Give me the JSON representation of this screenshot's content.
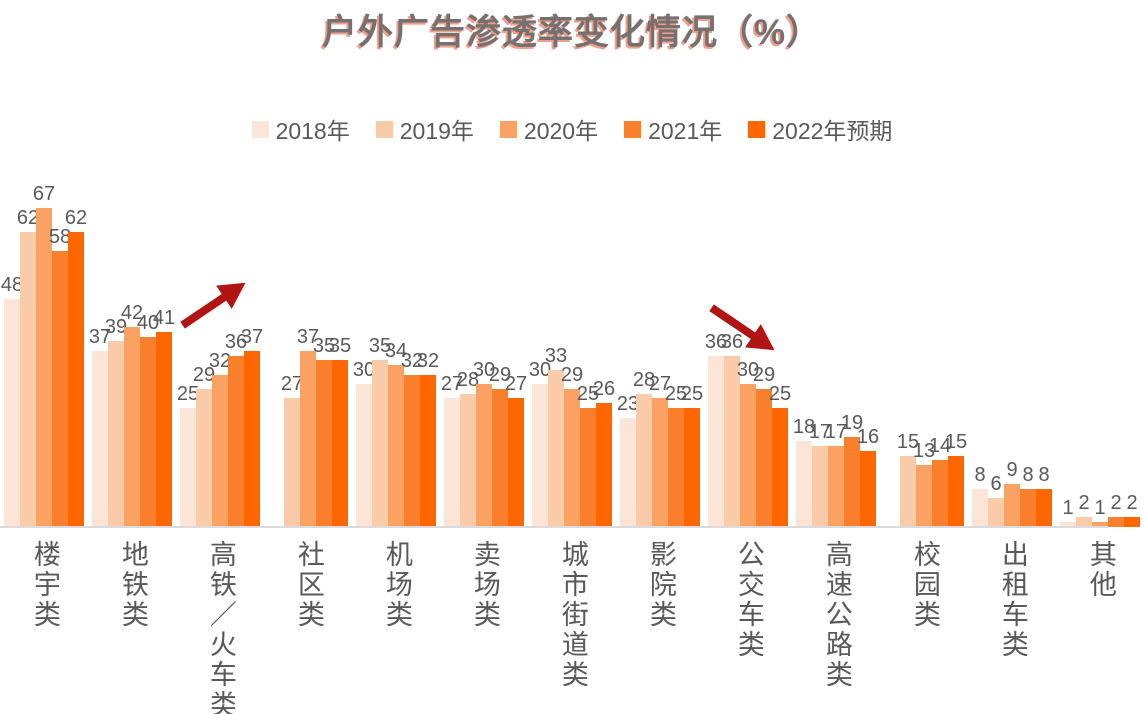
{
  "title": "户外广告渗透率变化情况（%）",
  "colors": {
    "title_text": "#767171",
    "title_shadow": "#E84E28",
    "body_text": "#595959",
    "baseline": "#DBDBDB",
    "arrow": "#B01513"
  },
  "chart_data": {
    "type": "bar",
    "title": "户外广告渗透率变化情况（%）",
    "xlabel": "",
    "ylabel": "",
    "ylim": [
      0,
      70
    ],
    "grid": false,
    "legend_position": "top",
    "value_labels": true,
    "categories": [
      "楼宇类",
      "地铁类",
      "高铁／火车类",
      "社区类",
      "机场类",
      "卖场类",
      "城市街道类",
      "影院类",
      "公交车类",
      "高速公路类",
      "校园类",
      "出租车类",
      "其他"
    ],
    "series": [
      {
        "name": "2018年",
        "color": "#FBE5D6",
        "values": [
          48,
          37,
          25,
          null,
          30,
          27,
          30,
          23,
          36,
          18,
          null,
          8,
          1
        ]
      },
      {
        "name": "2019年",
        "color": "#F9CBA9",
        "values": [
          62,
          39,
          29,
          27,
          35,
          28,
          33,
          28,
          36,
          17,
          15,
          6,
          2
        ]
      },
      {
        "name": "2020年",
        "color": "#FAA263",
        "values": [
          67,
          42,
          32,
          37,
          34,
          30,
          29,
          27,
          30,
          17,
          13,
          9,
          1
        ]
      },
      {
        "name": "2021年",
        "color": "#F8802C",
        "values": [
          58,
          40,
          36,
          35,
          32,
          29,
          25,
          25,
          29,
          19,
          14,
          8,
          2
        ]
      },
      {
        "name": "2022年预期",
        "color": "#FF6600",
        "values": [
          62,
          41,
          37,
          35,
          32,
          27,
          26,
          25,
          25,
          16,
          15,
          8,
          2
        ]
      }
    ],
    "annotations": [
      {
        "type": "arrow",
        "direction": "up-right",
        "near_category": "高铁／火车类",
        "color": "#B01513"
      },
      {
        "type": "arrow",
        "direction": "down-right",
        "near_category": "公交车类",
        "color": "#B01513"
      }
    ]
  }
}
